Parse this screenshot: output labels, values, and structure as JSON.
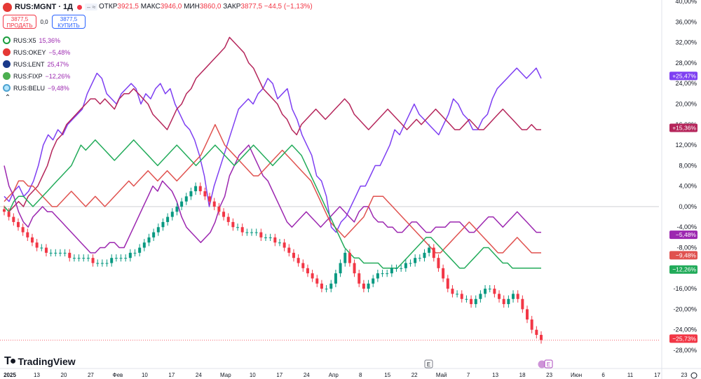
{
  "header": {
    "symbol": "RUS:MGNT · 1Д",
    "ohlc_open_label": "ОТКР",
    "ohlc_open": "3921,5",
    "ohlc_high_label": "МАКС",
    "ohlc_high": "3946,0",
    "ohlc_low_label": "МИН",
    "ohlc_low": "3860,0",
    "ohlc_close_label": "ЗАКР",
    "ohlc_close": "3877,5",
    "change": "−44,5 (−1,13%)",
    "controls": "– ≈"
  },
  "trade": {
    "sell_price": "3877,5",
    "sell_label": "ПРОДАТЬ",
    "spread": "0,0",
    "buy_price": "3877,5",
    "buy_label": "КУПИТЬ"
  },
  "legend": [
    {
      "name": "RUS:X5",
      "value": "15,36%",
      "color": "#9c27b0"
    },
    {
      "name": "RUS:OKEY",
      "value": "−5,48%",
      "color": "#9c27b0"
    },
    {
      "name": "RUS:LENT",
      "value": "25,47%",
      "color": "#9c27b0"
    },
    {
      "name": "RUS:FIXP",
      "value": "−12,26%",
      "color": "#9c27b0"
    },
    {
      "name": "RUS:BELU",
      "value": "−9,48%",
      "color": "#9c27b0"
    }
  ],
  "logo": "TradingView",
  "chart_data": {
    "type": "line",
    "y_unit": "%",
    "ylim": [
      -28,
      40
    ],
    "y_ticks": [
      "40,00%",
      "36,00%",
      "32,00%",
      "28,00%",
      "24,00%",
      "20,00%",
      "16,00%",
      "12,00%",
      "8,00%",
      "4,00%",
      "0,00%",
      "-4,00%",
      "-8,00%",
      "-12,00%",
      "-16,00%",
      "-20,00%",
      "-24,00%",
      "-28,00%"
    ],
    "x_ticks": [
      "2025",
      "13",
      "20",
      "27",
      "Фев",
      "10",
      "17",
      "24",
      "Мар",
      "10",
      "17",
      "24",
      "Апр",
      "8",
      "15",
      "22",
      "Май",
      "7",
      "13",
      "18",
      "23",
      "Июн",
      "6",
      "11",
      "17",
      "23"
    ],
    "zero_line": true,
    "last_value_labels": [
      {
        "text": "+25,47%",
        "color": "#7e3ff2"
      },
      {
        "text": "+15,36%",
        "color": "#b5265b"
      },
      {
        "text": "−5,48%",
        "color": "#9c27b0"
      },
      {
        "text": "−9,48%",
        "color": "#e0524f"
      },
      {
        "text": "−12,26%",
        "color": "#22ab5a"
      },
      {
        "text": "−25,73%",
        "color": "#f23645"
      }
    ],
    "series": [
      {
        "name": "RUS:LENT",
        "color": "#7e3ff2",
        "values": [
          2,
          1,
          3,
          4,
          2,
          3,
          5,
          8,
          12,
          14,
          13,
          15,
          14,
          16,
          17,
          18,
          19,
          22,
          24,
          26,
          25,
          22,
          21,
          20,
          22,
          23,
          24,
          23,
          20,
          22,
          21,
          23,
          24,
          22,
          23,
          20,
          18,
          16,
          15,
          13,
          10,
          6,
          0,
          4,
          7,
          10,
          13,
          16,
          19,
          20,
          21,
          20,
          22,
          23,
          25,
          24,
          21,
          22,
          23,
          19,
          17,
          14,
          12,
          10,
          6,
          5,
          2,
          -4,
          -5,
          -3,
          -2,
          0,
          2,
          4,
          4,
          6,
          8,
          8,
          10,
          12,
          15,
          14,
          16,
          18,
          20,
          18,
          17,
          16,
          15,
          14,
          16,
          18,
          21,
          20,
          18,
          17,
          15,
          15,
          17,
          18,
          21,
          23,
          24,
          25,
          26,
          27,
          26,
          25,
          26,
          27,
          25
        ]
      },
      {
        "name": "RUS:X5",
        "color": "#b5265b",
        "values": [
          0,
          -1,
          0,
          1,
          0,
          2,
          3,
          4,
          6,
          8,
          11,
          13,
          14,
          16,
          17,
          18,
          19,
          20,
          21,
          21,
          20,
          21,
          20,
          19,
          21,
          22,
          22,
          23,
          22,
          21,
          20,
          18,
          17,
          16,
          15,
          17,
          19,
          20,
          22,
          23,
          25,
          26,
          27,
          28,
          29,
          30,
          31,
          33,
          32,
          31,
          30,
          28,
          27,
          25,
          23,
          22,
          21,
          20,
          18,
          17,
          15,
          14,
          16,
          17,
          18,
          19,
          18,
          17,
          18,
          19,
          20,
          21,
          20,
          18,
          17,
          16,
          15,
          16,
          17,
          18,
          19,
          18,
          17,
          16,
          15,
          16,
          17,
          16,
          17,
          18,
          19,
          18,
          17,
          16,
          15,
          15,
          16,
          17,
          16,
          15,
          15,
          16,
          17,
          18,
          19,
          18,
          17,
          16,
          15,
          15,
          16,
          15,
          15
        ]
      },
      {
        "name": "RUS:OKEY",
        "color": "#9c27b0",
        "values": [
          8,
          4,
          2,
          -1,
          -3,
          -4,
          -2,
          -1,
          0,
          -1,
          -1,
          -2,
          -3,
          -4,
          -5,
          -6,
          -7,
          -8,
          -9,
          -9,
          -8,
          -8,
          -7,
          -7,
          -8,
          -8,
          -6,
          -4,
          -2,
          0,
          2,
          4,
          3,
          5,
          4,
          3,
          1,
          -2,
          -4,
          -5,
          -6,
          -7,
          -6,
          -5,
          -3,
          0,
          2,
          6,
          8,
          10,
          11,
          12,
          10,
          8,
          6,
          5,
          3,
          1,
          -1,
          -3,
          -4,
          -3,
          -2,
          -1,
          -2,
          -3,
          -4,
          -3,
          -2,
          -1,
          0,
          -1,
          -2,
          -3,
          -1,
          0,
          0,
          -2,
          -3,
          -3,
          -4,
          -4,
          -5,
          -5,
          -4,
          -3,
          -3,
          -4,
          -5,
          -5,
          -4,
          -4,
          -4,
          -3,
          -3,
          -3,
          -4,
          -5,
          -5,
          -4,
          -3,
          -2,
          -2,
          -3,
          -4,
          -3,
          -2,
          -1,
          -2,
          -3,
          -4,
          -5,
          -5
        ]
      },
      {
        "name": "RUS:BELU",
        "color": "#e0524f",
        "values": [
          1,
          2,
          3,
          5,
          5,
          4,
          4,
          3,
          2,
          1,
          0,
          0,
          1,
          2,
          3,
          2,
          1,
          0,
          1,
          2,
          1,
          0,
          1,
          2,
          3,
          4,
          5,
          4,
          5,
          6,
          7,
          6,
          5,
          6,
          7,
          6,
          5,
          6,
          7,
          8,
          9,
          10,
          12,
          14,
          16,
          14,
          12,
          11,
          10,
          9,
          8,
          7,
          6,
          6,
          7,
          8,
          9,
          10,
          11,
          10,
          9,
          8,
          7,
          6,
          5,
          3,
          1,
          -1,
          -3,
          -4,
          -5,
          -6,
          -5,
          -4,
          -3,
          -2,
          0,
          2,
          2,
          2,
          1,
          0,
          -1,
          -2,
          -3,
          -4,
          -5,
          -6,
          -7,
          -8,
          -9,
          -9,
          -8,
          -7,
          -6,
          -5,
          -4,
          -3,
          -4,
          -5,
          -6,
          -7,
          -8,
          -9,
          -9,
          -8,
          -7,
          -6,
          -7,
          -8,
          -9,
          -9,
          -9
        ]
      },
      {
        "name": "RUS:FIXP",
        "color": "#22ab5a",
        "values": [
          0,
          -1,
          1,
          2,
          2,
          1,
          0,
          1,
          2,
          3,
          4,
          5,
          6,
          7,
          8,
          10,
          12,
          11,
          12,
          13,
          12,
          11,
          10,
          9,
          10,
          11,
          12,
          13,
          12,
          11,
          10,
          9,
          8,
          9,
          10,
          11,
          12,
          11,
          10,
          9,
          8,
          9,
          10,
          11,
          12,
          11,
          10,
          9,
          8,
          9,
          10,
          11,
          12,
          11,
          10,
          9,
          8,
          9,
          10,
          11,
          12,
          11,
          10,
          8,
          6,
          4,
          2,
          0,
          -2,
          -4,
          -6,
          -8,
          -9,
          -10,
          -10,
          -11,
          -11,
          -11,
          -11,
          -12,
          -12,
          -12,
          -12,
          -11,
          -10,
          -9,
          -8,
          -7,
          -6,
          -6,
          -7,
          -8,
          -9,
          -10,
          -11,
          -12,
          -12,
          -11,
          -10,
          -9,
          -8,
          -8,
          -9,
          -10,
          -11,
          -11,
          -12,
          -12,
          -12,
          -12,
          -12,
          -12,
          -12
        ]
      },
      {
        "name": "RUS:MGNT",
        "color": "#22ab5a",
        "values": [
          -1,
          -2,
          -3,
          -4,
          -5,
          -6,
          -7,
          -8,
          -8,
          -9,
          -9,
          -9,
          -9,
          -9,
          -10,
          -10,
          -10,
          -10,
          -10,
          -11,
          -11,
          -11,
          -11,
          -10,
          -10,
          -10,
          -10,
          -9,
          -9,
          -8,
          -7,
          -6,
          -5,
          -4,
          -3,
          -2,
          -1,
          0,
          1,
          2,
          3,
          4,
          3,
          2,
          1,
          0,
          -1,
          -2,
          -3,
          -4,
          -4,
          -5,
          -5,
          -5,
          -5,
          -6,
          -6,
          -6,
          -7,
          -7,
          -8,
          -9,
          -10,
          -11,
          -12,
          -13,
          -14,
          -15,
          -16,
          -16,
          -15,
          -13,
          -11,
          -9,
          -11,
          -13,
          -15,
          -16,
          -15,
          -14,
          -13,
          -13,
          -13,
          -12,
          -12,
          -12,
          -11,
          -11,
          -10,
          -10,
          -9,
          -8,
          -10,
          -12,
          -14,
          -16,
          -17,
          -17,
          -18,
          -18,
          -19,
          -18,
          -17,
          -16,
          -16,
          -17,
          -18,
          -19,
          -18,
          -17,
          -18,
          -20,
          -22,
          -24,
          -25,
          -26
        ]
      }
    ]
  }
}
